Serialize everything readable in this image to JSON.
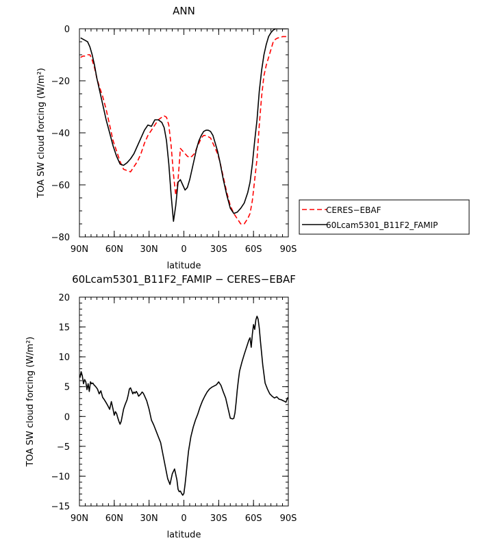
{
  "chart_data": [
    {
      "type": "line",
      "title": "ANN",
      "xlabel": "latitude",
      "ylabel": "TOA SW cloud forcing (W/m²)",
      "xlim": [
        90,
        -90
      ],
      "ylim": [
        -80,
        0
      ],
      "x_tick_values": [
        90,
        60,
        30,
        0,
        -30,
        -60,
        -90
      ],
      "x_tick_labels": [
        "90N",
        "60N",
        "30N",
        "0",
        "30S",
        "60S",
        "90S"
      ],
      "y_tick_values": [
        0,
        -20,
        -40,
        -60,
        -80
      ],
      "y_tick_labels": [
        "0",
        "−20",
        "−40",
        "−60",
        "−80"
      ],
      "legend_position": "right",
      "series": [
        {
          "name": "CERES−EBAF",
          "color": "#ff0000",
          "dash": "dashed",
          "x": [
            89,
            87,
            85,
            83,
            81,
            79,
            77,
            75,
            73,
            70,
            67,
            64,
            61,
            58,
            55,
            52,
            49,
            46,
            43,
            40,
            37,
            34,
            31,
            28,
            25,
            22,
            19,
            17,
            15,
            13,
            11,
            9,
            7,
            5,
            3,
            1,
            -1,
            -3,
            -5,
            -7,
            -9,
            -11,
            -13,
            -15,
            -17,
            -19,
            -21,
            -23,
            -25,
            -27,
            -29,
            -31,
            -34,
            -37,
            -40,
            -43,
            -46,
            -49,
            -52,
            -55,
            -57,
            -59,
            -61,
            -63,
            -65,
            -67,
            -69,
            -71,
            -73,
            -75,
            -77,
            -79,
            -81,
            -83,
            -85,
            -87,
            -89
          ],
          "y": [
            -11,
            -10.5,
            -10.5,
            -10,
            -10,
            -12,
            -15,
            -19,
            -22,
            -26,
            -31,
            -37,
            -43,
            -47,
            -51,
            -54,
            -54.5,
            -55,
            -53,
            -51,
            -48,
            -44,
            -41,
            -39,
            -37,
            -35,
            -34,
            -33.5,
            -34,
            -37,
            -45,
            -56,
            -64,
            -58,
            -46,
            -47,
            -48,
            -49,
            -49.5,
            -49,
            -48,
            -46,
            -44,
            -42,
            -41,
            -41,
            -41.5,
            -42,
            -44,
            -46,
            -48,
            -51,
            -57,
            -63,
            -68,
            -71,
            -73,
            -75,
            -75,
            -73,
            -71,
            -66,
            -58,
            -50,
            -37,
            -26,
            -18,
            -14,
            -11,
            -8,
            -5,
            -4,
            -3.5,
            -3.5,
            -3,
            -3,
            -3
          ]
        },
        {
          "name": "60Lcam5301_B11F2_FAMIP",
          "color": "#000000",
          "dash": "solid",
          "x": [
            89,
            87,
            85,
            83,
            81,
            79,
            77,
            75,
            73,
            70,
            67,
            64,
            61,
            58,
            55,
            52,
            49,
            46,
            43,
            40,
            37,
            34,
            31,
            28,
            25,
            22,
            19,
            17,
            15,
            13,
            11,
            9,
            7,
            5,
            3,
            1,
            -1,
            -3,
            -5,
            -7,
            -9,
            -11,
            -13,
            -15,
            -17,
            -19,
            -21,
            -23,
            -25,
            -27,
            -29,
            -31,
            -34,
            -37,
            -40,
            -43,
            -46,
            -49,
            -52,
            -55,
            -57,
            -59,
            -61,
            -63,
            -65,
            -67,
            -69,
            -71,
            -73,
            -75,
            -77,
            -79,
            -81,
            -83,
            -85,
            -87,
            -89
          ],
          "y": [
            -3.5,
            -4,
            -4.5,
            -5,
            -7,
            -10,
            -14,
            -19,
            -23,
            -29,
            -35,
            -40,
            -45,
            -49,
            -52,
            -52.5,
            -51.5,
            -50,
            -48,
            -45,
            -42,
            -39,
            -37,
            -37.5,
            -35,
            -35,
            -36,
            -38,
            -43,
            -52,
            -64,
            -74,
            -68,
            -59,
            -58,
            -60,
            -62,
            -61,
            -58,
            -54,
            -50,
            -46,
            -43,
            -41,
            -39.5,
            -39,
            -39,
            -39.5,
            -41,
            -44,
            -47,
            -51,
            -58,
            -64,
            -69,
            -71,
            -70.5,
            -69,
            -67,
            -63,
            -59,
            -52,
            -43,
            -35,
            -24,
            -16,
            -10,
            -6,
            -3,
            -1.5,
            -0.5,
            0,
            0,
            0,
            0,
            0,
            0
          ]
        }
      ]
    },
    {
      "type": "line",
      "title": "60Lcam5301_B11F2_FAMIP − CERES−EBAF",
      "xlabel": "latitude",
      "ylabel": "TOA SW cloud forcing (W/m²)",
      "xlim": [
        90,
        -90
      ],
      "ylim": [
        -15,
        20
      ],
      "x_tick_values": [
        90,
        60,
        30,
        0,
        -30,
        -60,
        -90
      ],
      "x_tick_labels": [
        "90N",
        "60N",
        "30N",
        "0",
        "30S",
        "60S",
        "90S"
      ],
      "y_tick_values": [
        20,
        15,
        10,
        5,
        0,
        -5,
        -10,
        -15
      ],
      "y_tick_labels": [
        "20",
        "15",
        "10",
        "5",
        "0",
        "−5",
        "−10",
        "−15"
      ],
      "series": [
        {
          "color": "#000000",
          "dash": "solid",
          "x": [
            89.5,
            88.5,
            87.5,
            86.5,
            85.5,
            84.5,
            83.5,
            82.5,
            81.5,
            80.5,
            79.5,
            78.5,
            77.5,
            76,
            74.5,
            73,
            71.5,
            70,
            68.5,
            67,
            65.5,
            64,
            62.5,
            61,
            60,
            59,
            58,
            57,
            56,
            55,
            54,
            53,
            52,
            51,
            50,
            49,
            48,
            47,
            46,
            45,
            44,
            43,
            42,
            41,
            40,
            39,
            38,
            37,
            36,
            35,
            34,
            32,
            30,
            28,
            26,
            24,
            22,
            20,
            18,
            16,
            14,
            12,
            10,
            8,
            6,
            5,
            4,
            3,
            2,
            1,
            0,
            -1,
            -2,
            -3,
            -4,
            -5,
            -6,
            -8,
            -10,
            -12,
            -14,
            -16,
            -18,
            -20,
            -22,
            -24,
            -26,
            -28,
            -30,
            -32,
            -34,
            -36,
            -38,
            -40,
            -42,
            -43,
            -44,
            -45,
            -46,
            -47,
            -48,
            -50,
            -52,
            -54,
            -56,
            -57,
            -58,
            -59,
            -60,
            -61,
            -62,
            -63,
            -64,
            -65,
            -66,
            -67,
            -68,
            -69,
            -70,
            -72,
            -74,
            -76,
            -78,
            -80,
            -82,
            -84,
            -86,
            -88,
            -89.5
          ],
          "y": [
            6.5,
            7.5,
            6.8,
            5.5,
            6.2,
            5.8,
            4.5,
            5.5,
            4.2,
            5.8,
            5.5,
            5.6,
            5.3,
            5.0,
            4.6,
            3.8,
            4.3,
            3.2,
            2.8,
            2.3,
            1.8,
            1.2,
            2.5,
            1.2,
            0.2,
            0.8,
            0.5,
            -0.2,
            -0.8,
            -1.3,
            -0.8,
            0.2,
            1.2,
            1.8,
            2.3,
            2.8,
            3.6,
            4.6,
            4.8,
            4.3,
            3.8,
            4.1,
            3.9,
            4.2,
            3.9,
            3.4,
            3.6,
            3.8,
            4.1,
            3.9,
            3.5,
            2.6,
            1.2,
            -0.6,
            -1.4,
            -2.4,
            -3.4,
            -4.4,
            -6.4,
            -8.4,
            -10.4,
            -11.4,
            -9.6,
            -8.8,
            -10.6,
            -12.2,
            -12.6,
            -12.5,
            -12.9,
            -13.2,
            -12.9,
            -11.4,
            -9.6,
            -7.6,
            -5.8,
            -4.6,
            -3.4,
            -1.8,
            -0.6,
            0.4,
            1.6,
            2.6,
            3.4,
            4.1,
            4.6,
            4.9,
            5.1,
            5.3,
            5.8,
            5.2,
            4.1,
            3.1,
            1.4,
            -0.3,
            -0.4,
            -0.3,
            0.6,
            2.4,
            4.4,
            6.1,
            7.6,
            9.1,
            10.4,
            11.6,
            12.8,
            13.2,
            11.6,
            13.8,
            15.4,
            14.6,
            16.2,
            16.8,
            16.3,
            14.8,
            12.6,
            10.6,
            8.6,
            7.1,
            5.6,
            4.6,
            3.8,
            3.4,
            3.1,
            3.3,
            2.9,
            2.8,
            2.6,
            2.4,
            3.2
          ]
        }
      ]
    }
  ]
}
